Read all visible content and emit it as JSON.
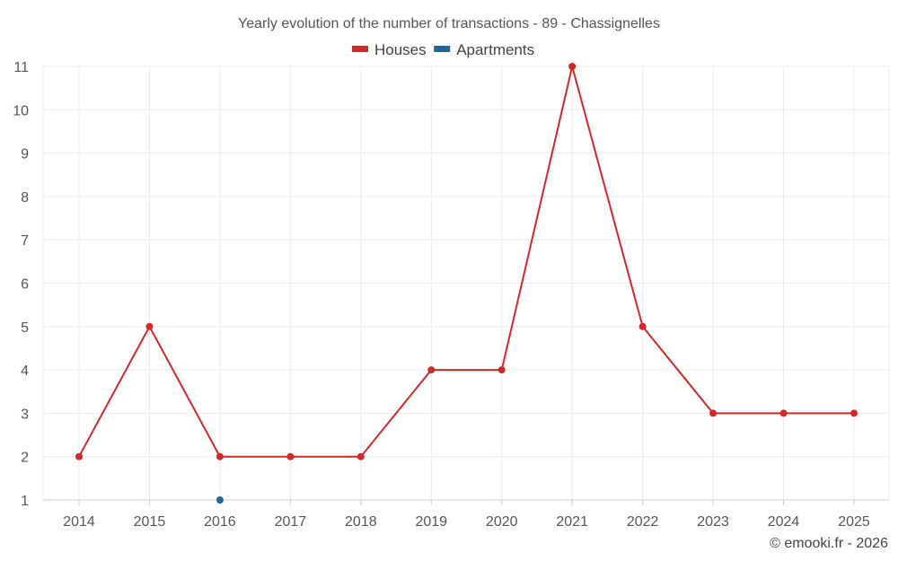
{
  "chart_data": {
    "type": "line",
    "title": "Yearly evolution of the number of transactions - 89 - Chassignelles",
    "x": [
      "2014",
      "2015",
      "2016",
      "2017",
      "2018",
      "2019",
      "2020",
      "2021",
      "2022",
      "2023",
      "2024",
      "2025"
    ],
    "ylim": [
      1,
      11
    ],
    "yticks": [
      1,
      2,
      3,
      4,
      5,
      6,
      7,
      8,
      9,
      10,
      11
    ],
    "grid": true,
    "legend_position": "top-center",
    "series": [
      {
        "name": "Houses",
        "color": "#d62728",
        "values": [
          2,
          5,
          2,
          2,
          2,
          4,
          4,
          11,
          5,
          3,
          3,
          3
        ]
      },
      {
        "name": "Apartments",
        "color": "#1a6a9a",
        "values": [
          null,
          null,
          1,
          null,
          null,
          null,
          null,
          null,
          null,
          null,
          null,
          null
        ]
      }
    ]
  },
  "credit": "© emooki.fr - 2026"
}
